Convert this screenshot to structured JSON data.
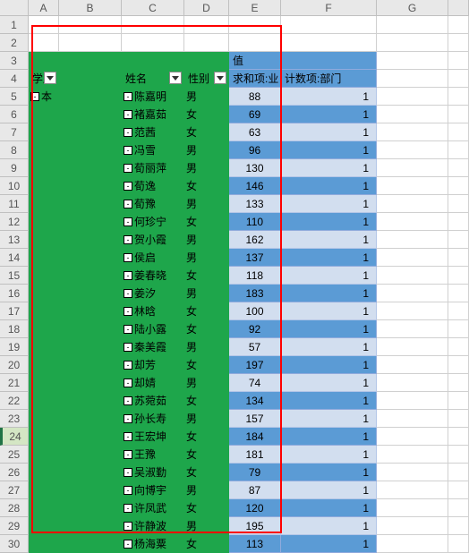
{
  "columns": [
    "A",
    "B",
    "C",
    "D",
    "E",
    "F",
    "G"
  ],
  "row_start": 1,
  "row_end": 30,
  "selected_row": 24,
  "pivot": {
    "header_row": 3,
    "field_row": 4,
    "fields": {
      "edu": "学历",
      "name": "姓名",
      "gender": "性别",
      "value_label": "值",
      "sum_label": "求和项:业绩",
      "count_label": "计数项:部门"
    },
    "edu_value": "本科",
    "rows": [
      {
        "name": "陈嘉明",
        "gender": "男",
        "sum": 88,
        "count": 1
      },
      {
        "name": "褚嘉茹",
        "gender": "女",
        "sum": 69,
        "count": 1
      },
      {
        "name": "范茜",
        "gender": "女",
        "sum": 63,
        "count": 1
      },
      {
        "name": "冯雪",
        "gender": "男",
        "sum": 96,
        "count": 1
      },
      {
        "name": "荀丽萍",
        "gender": "男",
        "sum": 130,
        "count": 1
      },
      {
        "name": "荀逸",
        "gender": "女",
        "sum": 146,
        "count": 1
      },
      {
        "name": "荀豫",
        "gender": "男",
        "sum": 133,
        "count": 1
      },
      {
        "name": "何珍宁",
        "gender": "女",
        "sum": 110,
        "count": 1
      },
      {
        "name": "贺小霞",
        "gender": "男",
        "sum": 162,
        "count": 1
      },
      {
        "name": "侯启",
        "gender": "男",
        "sum": 137,
        "count": 1
      },
      {
        "name": "姜春晓",
        "gender": "女",
        "sum": 118,
        "count": 1
      },
      {
        "name": "姜汐",
        "gender": "男",
        "sum": 183,
        "count": 1
      },
      {
        "name": "林晗",
        "gender": "女",
        "sum": 100,
        "count": 1
      },
      {
        "name": "陆小露",
        "gender": "女",
        "sum": 92,
        "count": 1
      },
      {
        "name": "秦美霞",
        "gender": "男",
        "sum": 57,
        "count": 1
      },
      {
        "name": "却芳",
        "gender": "女",
        "sum": 197,
        "count": 1
      },
      {
        "name": "却婧",
        "gender": "男",
        "sum": 74,
        "count": 1
      },
      {
        "name": "苏菀茹",
        "gender": "女",
        "sum": 134,
        "count": 1
      },
      {
        "name": "孙长寿",
        "gender": "男",
        "sum": 157,
        "count": 1
      },
      {
        "name": "王宏坤",
        "gender": "女",
        "sum": 184,
        "count": 1
      },
      {
        "name": "王豫",
        "gender": "女",
        "sum": 181,
        "count": 1
      },
      {
        "name": "吴淑勤",
        "gender": "女",
        "sum": 79,
        "count": 1
      },
      {
        "name": "向博宇",
        "gender": "男",
        "sum": 87,
        "count": 1
      },
      {
        "name": "许凤武",
        "gender": "女",
        "sum": 120,
        "count": 1
      },
      {
        "name": "许静波",
        "gender": "男",
        "sum": 195,
        "count": 1
      },
      {
        "name": "杨海粟",
        "gender": "女",
        "sum": 113,
        "count": 1
      }
    ]
  },
  "colors": {
    "green": "#1ea64b",
    "blue_dark": "#5b9bd5",
    "blue_light": "#d2deef",
    "grid": "#d0d0d0",
    "header_bg": "#e8e8e8",
    "highlight_border": "#ff0000"
  }
}
